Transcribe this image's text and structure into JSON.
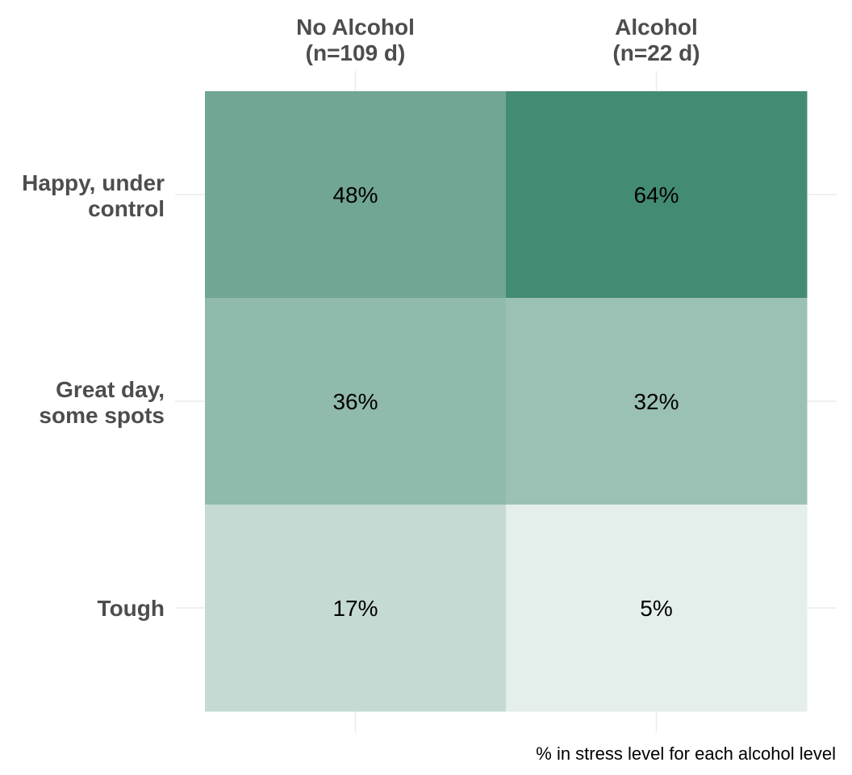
{
  "chart_data": {
    "type": "heatmap",
    "columns": [
      {
        "line1": "No Alcohol",
        "line2": "(n=109 d)"
      },
      {
        "line1": "Alcohol",
        "line2": "(n=22 d)"
      }
    ],
    "rows": [
      {
        "line1": "Happy, under",
        "line2": "control"
      },
      {
        "line1": "Great day,",
        "line2": "some spots"
      },
      {
        "line1": "Tough",
        "line2": ""
      }
    ],
    "values": [
      [
        48,
        64
      ],
      [
        36,
        32
      ],
      [
        17,
        5
      ]
    ],
    "value_labels": [
      [
        "48%",
        "64%"
      ],
      [
        "36%",
        "32%"
      ],
      [
        "17%",
        "5%"
      ]
    ],
    "value_range": [
      0,
      64
    ],
    "color_low": "#f2f6f4",
    "color_high": "#448b73",
    "grid": true,
    "caption": "% in stress level for each alcohol level"
  }
}
